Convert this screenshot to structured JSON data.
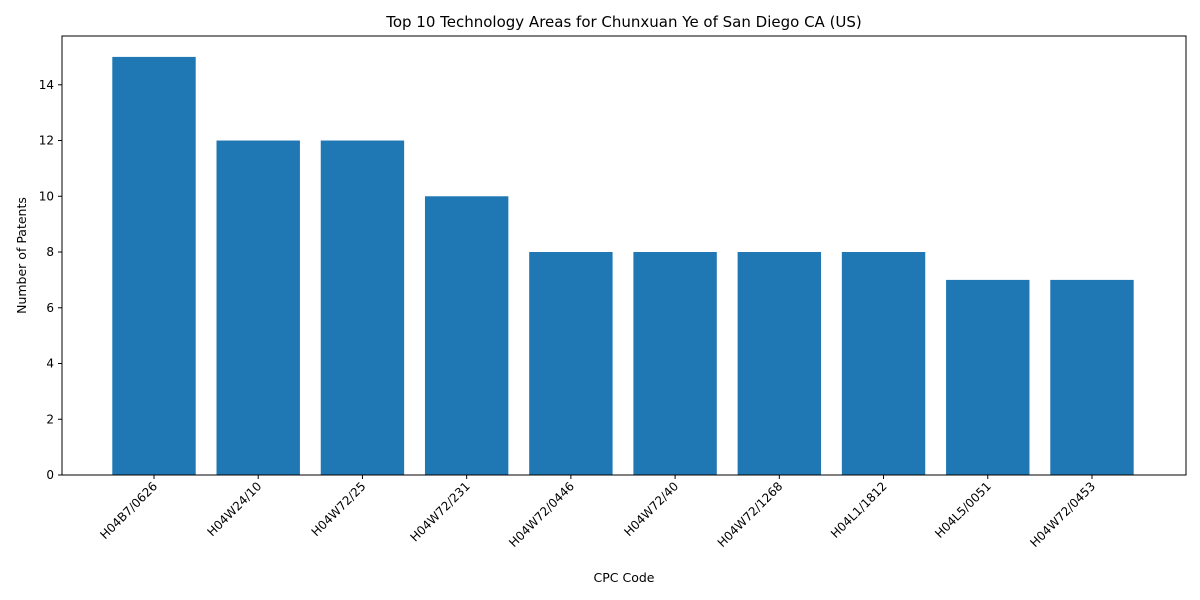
{
  "chart_data": {
    "type": "bar",
    "title": "Top 10 Technology Areas for Chunxuan Ye of San Diego CA (US)",
    "xlabel": "CPC Code",
    "ylabel": "Number of Patents",
    "categories": [
      "H04B7/0626",
      "H04W24/10",
      "H04W72/25",
      "H04W72/231",
      "H04W72/0446",
      "H04W72/40",
      "H04W72/1268",
      "H04L1/1812",
      "H04L5/0051",
      "H04W72/0453"
    ],
    "values": [
      15,
      12,
      12,
      10,
      8,
      8,
      8,
      8,
      7,
      7
    ],
    "ylim": [
      0,
      15.75
    ],
    "yticks": [
      0,
      2,
      4,
      6,
      8,
      10,
      12,
      14
    ],
    "bar_color": "#1f77b4",
    "grid": false,
    "legend": "none"
  }
}
